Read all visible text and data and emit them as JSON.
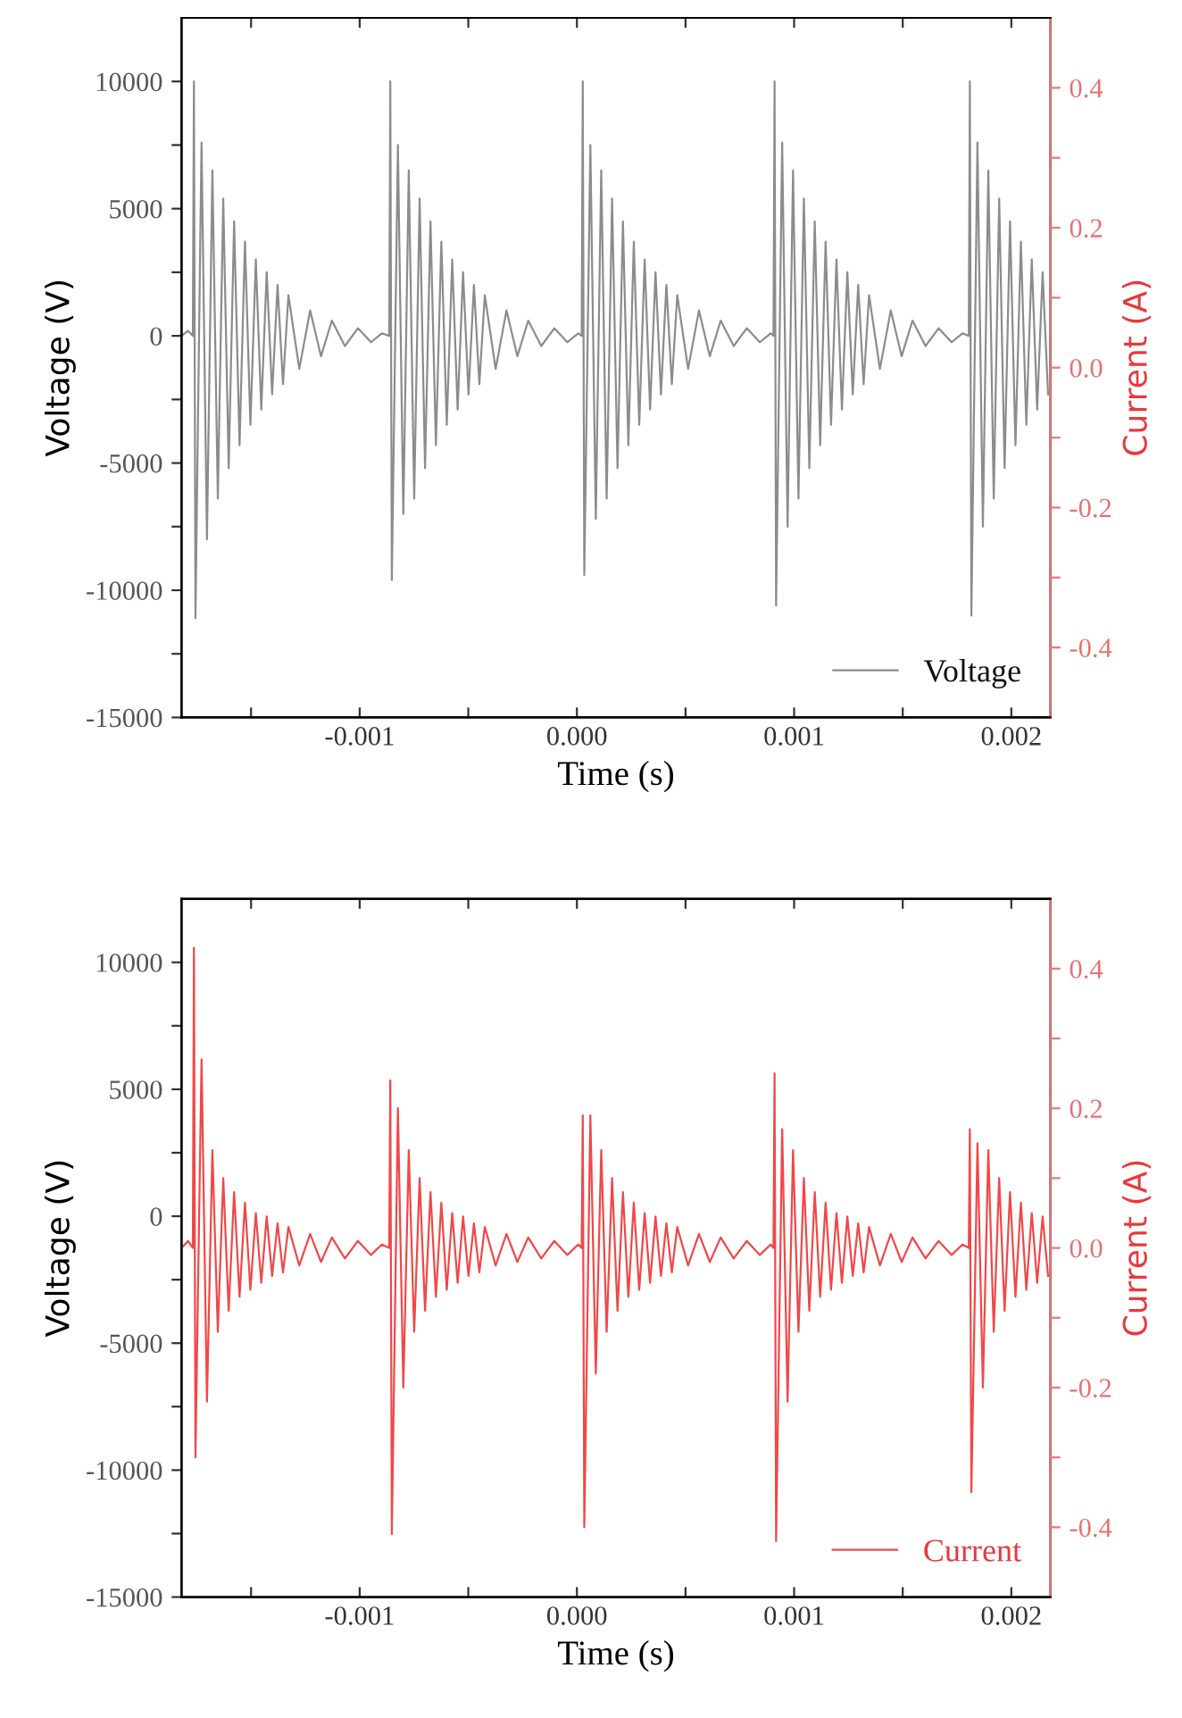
{
  "chart_data": [
    {
      "type": "line",
      "xlabel": "Time (s)",
      "ylabel": "Voltage (V)",
      "y2label": "Current (A)",
      "legend": "bottom right",
      "xlim": [
        -0.00182,
        0.00218
      ],
      "xticks": [
        {
          "value": -0.0015,
          "label": null
        },
        {
          "value": -0.001,
          "label": "-0.001"
        },
        {
          "value": -0.0005,
          "label": null
        },
        {
          "value": 0,
          "label": "0.000"
        },
        {
          "value": 0.0005,
          "label": null
        },
        {
          "value": 0.001,
          "label": "0.001"
        },
        {
          "value": 0.0015,
          "label": null
        },
        {
          "value": 0.002,
          "label": "0.002"
        }
      ],
      "ylim": [
        -15000,
        12500
      ],
      "yticks": [
        -15000,
        {
          "value": -12500,
          "label": null
        },
        -10000,
        {
          "value": -7500,
          "label": null
        },
        -5000,
        {
          "value": -2500,
          "label": null
        },
        0,
        {
          "value": 2500,
          "label": null
        },
        5000,
        {
          "value": 7500,
          "label": null
        },
        10000
      ],
      "y2lim": [
        -0.5,
        0.5
      ],
      "y2ticks": [
        -0.4,
        {
          "value": -0.3,
          "label": null
        },
        -0.2,
        {
          "value": -0.1,
          "label": null
        },
        {
          "value": 0,
          "label": "0.0"
        },
        {
          "value": 0.1,
          "label": null
        },
        0.2,
        {
          "value": 0.3,
          "label": null
        },
        0.4
      ],
      "x": [
        -0.00182,
        -0.00179,
        -0.001768,
        -0.001763,
        -0.001756,
        -0.001728,
        -0.001703,
        -0.001678,
        -0.001653,
        -0.001628,
        -0.001603,
        -0.001578,
        -0.001553,
        -0.001528,
        -0.001503,
        -0.001478,
        -0.001453,
        -0.001428,
        -0.001403,
        -0.001378,
        -0.001353,
        -0.001328,
        -0.001278,
        -0.001228,
        -0.001178,
        -0.001128,
        -0.001068,
        -0.001008,
        -0.000948,
        -0.000898,
        -0.000864,
        -0.000859,
        -0.000852,
        -0.000824,
        -0.000799,
        -0.000774,
        -0.000749,
        -0.000724,
        -0.000699,
        -0.000674,
        -0.000649,
        -0.000624,
        -0.000599,
        -0.000574,
        -0.000549,
        -0.000524,
        -0.000499,
        -0.000474,
        -0.000449,
        -0.000424,
        -0.000374,
        -0.000324,
        -0.000274,
        -0.000224,
        -0.000164,
        -0.000104,
        -4.4e-05,
        6e-06,
        2.2e-05,
        2.7e-05,
        3.4e-05,
        6.2e-05,
        8.7e-05,
        0.000112,
        0.000137,
        0.000162,
        0.000187,
        0.000212,
        0.000237,
        0.000262,
        0.000287,
        0.000312,
        0.000337,
        0.000362,
        0.000387,
        0.000412,
        0.000437,
        0.000462,
        0.000512,
        0.000562,
        0.000612,
        0.000662,
        0.000722,
        0.000782,
        0.000842,
        0.000892,
        0.000905,
        0.00091,
        0.000917,
        0.000945,
        0.00097,
        0.000995,
        0.00102,
        0.001045,
        0.00107,
        0.001095,
        0.00112,
        0.001145,
        0.00117,
        0.001195,
        0.00122,
        0.001245,
        0.00127,
        0.001295,
        0.00132,
        0.001345,
        0.001395,
        0.001445,
        0.001495,
        0.001545,
        0.001605,
        0.001665,
        0.001725,
        0.001775,
        0.001804,
        0.001809,
        0.001816,
        0.001844,
        0.001869,
        0.001894,
        0.001919,
        0.001944,
        0.001969,
        0.001994,
        0.002019,
        0.002044,
        0.002069,
        0.002094,
        0.002119,
        0.002144,
        0.002169
      ],
      "series": [
        {
          "name": "Voltage",
          "color": "#8c8c8c",
          "axis": "y",
          "values": [
            0,
            200,
            0,
            10000,
            -11100,
            7600,
            -8000,
            6500,
            -6400,
            5400,
            -5200,
            4500,
            -4300,
            3700,
            -3500,
            3000,
            -2900,
            2500,
            -2300,
            2000,
            -1900,
            1600,
            -1300,
            1000,
            -800,
            600,
            -400,
            300,
            -250,
            100,
            0,
            10000,
            -9600,
            7500,
            -7000,
            6500,
            -6400,
            5400,
            -5200,
            4500,
            -4300,
            3700,
            -3500,
            3000,
            -2900,
            2500,
            -2300,
            2000,
            -1900,
            1600,
            -1300,
            1000,
            -800,
            600,
            -400,
            300,
            -250,
            100,
            0,
            10000,
            -9400,
            7500,
            -7200,
            6500,
            -6400,
            5400,
            -5200,
            4500,
            -4300,
            3700,
            -3500,
            3000,
            -2900,
            2500,
            -2300,
            2000,
            -1900,
            1600,
            -1300,
            1000,
            -800,
            600,
            -400,
            300,
            -250,
            100,
            0,
            10000,
            -10600,
            7600,
            -7500,
            6500,
            -6400,
            5400,
            -5200,
            4500,
            -4300,
            3700,
            -3500,
            3000,
            -2900,
            2500,
            -2300,
            2000,
            -1900,
            1600,
            -1300,
            1000,
            -800,
            600,
            -400,
            300,
            -250,
            100,
            0,
            10000,
            -11000,
            7600,
            -7500,
            6500,
            -6400,
            5400,
            -5200,
            4500,
            -4300,
            3700,
            -3500,
            3000,
            -2900,
            2500,
            -2300
          ]
        }
      ]
    },
    {
      "type": "line",
      "xlabel": "Time (s)",
      "ylabel": "Voltage (V)",
      "y2label": "Current (A)",
      "legend": "bottom right",
      "xlim": [
        -0.00182,
        0.00218
      ],
      "xticks": [
        {
          "value": -0.0015,
          "label": null
        },
        {
          "value": -0.001,
          "label": "-0.001"
        },
        {
          "value": -0.0005,
          "label": null
        },
        {
          "value": 0,
          "label": "0.000"
        },
        {
          "value": 0.0005,
          "label": null
        },
        {
          "value": 0.001,
          "label": "0.001"
        },
        {
          "value": 0.0015,
          "label": null
        },
        {
          "value": 0.002,
          "label": "0.002"
        }
      ],
      "ylim": [
        -15000,
        12500
      ],
      "yticks": [
        -15000,
        {
          "value": -12500,
          "label": null
        },
        -10000,
        {
          "value": -7500,
          "label": null
        },
        -5000,
        {
          "value": -2500,
          "label": null
        },
        0,
        {
          "value": 2500,
          "label": null
        },
        5000,
        {
          "value": 7500,
          "label": null
        },
        10000
      ],
      "y2lim": [
        -0.5,
        0.5
      ],
      "y2ticks": [
        -0.4,
        {
          "value": -0.3,
          "label": null
        },
        -0.2,
        {
          "value": -0.1,
          "label": null
        },
        {
          "value": 0,
          "label": "0.0"
        },
        {
          "value": 0.1,
          "label": null
        },
        0.2,
        {
          "value": 0.3,
          "label": null
        },
        0.4
      ],
      "x": [
        -0.00182,
        -0.00179,
        -0.001768,
        -0.001763,
        -0.001756,
        -0.001728,
        -0.001703,
        -0.001678,
        -0.001653,
        -0.001628,
        -0.001603,
        -0.001578,
        -0.001553,
        -0.001528,
        -0.001503,
        -0.001478,
        -0.001453,
        -0.001428,
        -0.001403,
        -0.001378,
        -0.001353,
        -0.001328,
        -0.001278,
        -0.001228,
        -0.001178,
        -0.001128,
        -0.001068,
        -0.001008,
        -0.000948,
        -0.000898,
        -0.000864,
        -0.000859,
        -0.000852,
        -0.000824,
        -0.000799,
        -0.000774,
        -0.000749,
        -0.000724,
        -0.000699,
        -0.000674,
        -0.000649,
        -0.000624,
        -0.000599,
        -0.000574,
        -0.000549,
        -0.000524,
        -0.000499,
        -0.000474,
        -0.000449,
        -0.000424,
        -0.000374,
        -0.000324,
        -0.000274,
        -0.000224,
        -0.000164,
        -0.000104,
        -4.4e-05,
        6e-06,
        2.2e-05,
        2.7e-05,
        3.4e-05,
        6.2e-05,
        8.7e-05,
        0.000112,
        0.000137,
        0.000162,
        0.000187,
        0.000212,
        0.000237,
        0.000262,
        0.000287,
        0.000312,
        0.000337,
        0.000362,
        0.000387,
        0.000412,
        0.000437,
        0.000462,
        0.000512,
        0.000562,
        0.000612,
        0.000662,
        0.000722,
        0.000782,
        0.000842,
        0.000892,
        0.000905,
        0.00091,
        0.000917,
        0.000945,
        0.00097,
        0.000995,
        0.00102,
        0.001045,
        0.00107,
        0.001095,
        0.00112,
        0.001145,
        0.00117,
        0.001195,
        0.00122,
        0.001245,
        0.00127,
        0.001295,
        0.00132,
        0.001345,
        0.001395,
        0.001445,
        0.001495,
        0.001545,
        0.001605,
        0.001665,
        0.001725,
        0.001775,
        0.001804,
        0.001809,
        0.001816,
        0.001844,
        0.001869,
        0.001894,
        0.001919,
        0.001944,
        0.001969,
        0.001994,
        0.002019,
        0.002044,
        0.002069,
        0.002094,
        0.002119,
        0.002144,
        0.002169
      ],
      "series": [
        {
          "name": "Current",
          "color": "#f04848",
          "axis": "y2",
          "values": [
            0,
            0.01,
            0,
            0.43,
            -0.3,
            0.27,
            -0.22,
            0.14,
            -0.12,
            0.1,
            -0.09,
            0.08,
            -0.07,
            0.065,
            -0.06,
            0.05,
            -0.05,
            0.045,
            -0.04,
            0.035,
            -0.035,
            0.03,
            -0.025,
            0.02,
            -0.02,
            0.015,
            -0.015,
            0.01,
            -0.01,
            0.005,
            0,
            0.24,
            -0.41,
            0.2,
            -0.2,
            0.14,
            -0.12,
            0.1,
            -0.09,
            0.08,
            -0.07,
            0.065,
            -0.06,
            0.05,
            -0.05,
            0.045,
            -0.04,
            0.035,
            -0.035,
            0.03,
            -0.025,
            0.02,
            -0.02,
            0.015,
            -0.015,
            0.01,
            -0.01,
            0.005,
            0,
            0.19,
            -0.4,
            0.19,
            -0.18,
            0.14,
            -0.12,
            0.1,
            -0.09,
            0.08,
            -0.07,
            0.065,
            -0.06,
            0.05,
            -0.05,
            0.045,
            -0.04,
            0.035,
            -0.035,
            0.03,
            -0.025,
            0.02,
            -0.02,
            0.015,
            -0.015,
            0.01,
            -0.01,
            0.005,
            0,
            0.25,
            -0.42,
            0.17,
            -0.22,
            0.14,
            -0.12,
            0.1,
            -0.09,
            0.08,
            -0.07,
            0.065,
            -0.06,
            0.05,
            -0.05,
            0.045,
            -0.04,
            0.035,
            -0.035,
            0.03,
            -0.025,
            0.02,
            -0.02,
            0.015,
            -0.015,
            0.01,
            -0.01,
            0.005,
            0,
            0.17,
            -0.35,
            0.15,
            -0.2,
            0.14,
            -0.12,
            0.1,
            -0.09,
            0.08,
            -0.07,
            0.065,
            -0.06,
            0.05,
            -0.05,
            0.045,
            -0.04
          ]
        }
      ]
    }
  ]
}
